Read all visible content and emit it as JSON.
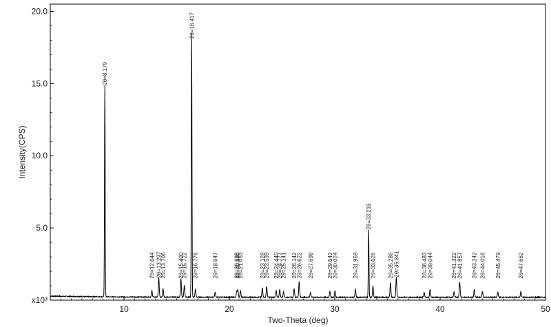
{
  "chart_data": {
    "type": "line",
    "title": "",
    "xlabel": "Two-Theta (deg)",
    "ylabel": "Intensity(CPS)",
    "y_multiplier_label": "x10³",
    "xlim": [
      3,
      50
    ],
    "ylim": [
      0,
      20.5
    ],
    "x_ticks": [
      10,
      20,
      30,
      40,
      50
    ],
    "y_ticks": [
      5.0,
      10.0,
      15.0,
      20.0
    ],
    "x_tick_labels": [
      "10",
      "20",
      "30",
      "40",
      "50"
    ],
    "y_tick_labels": [
      "5.0",
      "10.0",
      "15.0",
      "20.0"
    ],
    "grid": false,
    "series_color": "#000000",
    "baseline": 0.2,
    "peaks": [
      {
        "x": 8.179,
        "y": 14.7,
        "label": "2θ=8.179"
      },
      {
        "x": 12.644,
        "y": 0.45,
        "label": "2θ=12.644"
      },
      {
        "x": 13.297,
        "y": 1.35,
        "label": "2θ=13.297"
      },
      {
        "x": 13.706,
        "y": 0.6,
        "label": "2θ=13.706"
      },
      {
        "x": 15.4,
        "y": 1.3,
        "label": "2θ=15.400"
      },
      {
        "x": 15.722,
        "y": 0.8,
        "label": "2θ=15.722"
      },
      {
        "x": 16.417,
        "y": 18.4,
        "label": "2θ=16.417"
      },
      {
        "x": 16.776,
        "y": 0.55,
        "label": "2θ=16.776"
      },
      {
        "x": 18.647,
        "y": 0.35,
        "label": "2θ=18.647"
      },
      {
        "x": 20.698,
        "y": 0.4,
        "label": "2θ=20.698"
      },
      {
        "x": 20.8,
        "y": 0.5,
        "label": "2θ=20.800"
      },
      {
        "x": 21.053,
        "y": 0.45,
        "label": "2θ=21.053"
      },
      {
        "x": 23.128,
        "y": 0.65,
        "label": "2θ=23.128"
      },
      {
        "x": 23.539,
        "y": 0.75,
        "label": "2θ=23.539"
      },
      {
        "x": 24.44,
        "y": 0.45,
        "label": "2θ=24.440"
      },
      {
        "x": 24.777,
        "y": 0.55,
        "label": "2θ=24.777"
      },
      {
        "x": 25.141,
        "y": 0.4,
        "label": "2θ=25.141"
      },
      {
        "x": 26.142,
        "y": 0.6,
        "label": "2θ=26.142"
      },
      {
        "x": 26.622,
        "y": 1.1,
        "label": "2θ=26.622"
      },
      {
        "x": 27.698,
        "y": 0.35,
        "label": "2θ=27.698"
      },
      {
        "x": 29.542,
        "y": 0.4,
        "label": "2θ=29.542"
      },
      {
        "x": 30.024,
        "y": 0.45,
        "label": "2θ=30.024"
      },
      {
        "x": 31.959,
        "y": 0.55,
        "label": "2θ=31.959"
      },
      {
        "x": 33.216,
        "y": 4.7,
        "label": "2θ=33.216"
      },
      {
        "x": 33.626,
        "y": 0.75,
        "label": "2θ=33.626"
      },
      {
        "x": 35.286,
        "y": 1.0,
        "label": "2θ=35.286"
      },
      {
        "x": 35.841,
        "y": 1.4,
        "label": "2θ=35.841"
      },
      {
        "x": 38.483,
        "y": 0.35,
        "label": "2θ=38.483"
      },
      {
        "x": 39.044,
        "y": 0.55,
        "label": "2θ=39.044"
      },
      {
        "x": 41.322,
        "y": 0.4,
        "label": "2θ=41.322"
      },
      {
        "x": 41.857,
        "y": 1.05,
        "label": "2θ=41.857"
      },
      {
        "x": 43.242,
        "y": 0.55,
        "label": "2θ=43.242"
      },
      {
        "x": 44.016,
        "y": 0.4,
        "label": "2θ=44.016"
      },
      {
        "x": 45.479,
        "y": 0.35,
        "label": "2θ=45.479"
      },
      {
        "x": 47.662,
        "y": 0.4,
        "label": "2θ=47.662"
      }
    ]
  }
}
